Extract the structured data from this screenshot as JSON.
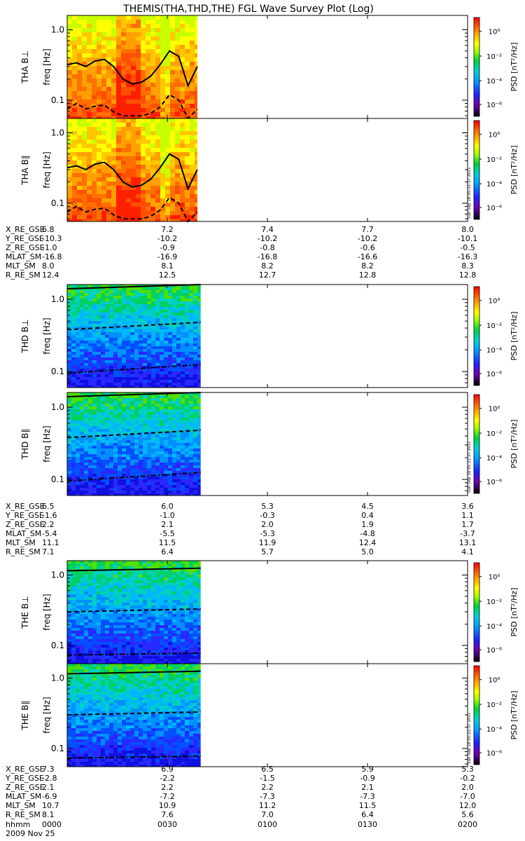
{
  "title": "THEMIS(THA,THD,THE) FGL Wave Survey Plot (Log)",
  "date_label": "2009 Nov 25",
  "time_row_label": "hhmm",
  "time_ticks": [
    "0000",
    "0030",
    "0100",
    "0130",
    "0200"
  ],
  "stamp_text": "Sun Sep 18 05:31:37 2011",
  "colors": {
    "line": "#000000"
  },
  "colorbar": {
    "label": "PSD [nT²/Hz]",
    "tick_labels": [
      "10⁰",
      "10⁻²",
      "10⁻⁴",
      "10⁻⁶"
    ]
  },
  "chart_data": {
    "type": "heatmap",
    "x_range": [
      "0000",
      "0200"
    ],
    "ylabel": "freq [Hz]",
    "yscale": "log",
    "ytick_labels": [
      "1.0",
      "0.1"
    ],
    "panels": [
      {
        "label": "THA B⊥",
        "probe": "THA",
        "data_end": "0039",
        "palette": "warm",
        "stamp": false,
        "ylim": [
          0.055,
          1.6
        ],
        "lines": [
          {
            "style": "solid",
            "values": [
              0.32,
              0.34,
              0.3,
              0.36,
              0.38,
              0.3,
              0.2,
              0.17,
              0.18,
              0.22,
              0.32,
              0.5,
              0.42,
              0.16,
              0.3
            ]
          },
          {
            "style": "dashed",
            "values": [
              0.075,
              0.09,
              0.075,
              0.082,
              0.085,
              0.068,
              0.06,
              0.06,
              0.06,
              0.065,
              0.08,
              0.12,
              0.1,
              0.055,
              0.075
            ]
          }
        ]
      },
      {
        "label": "THA B∥",
        "probe": "THA",
        "data_end": "0039",
        "palette": "warm",
        "stamp": true,
        "ylim": [
          0.055,
          1.6
        ],
        "lines": [
          {
            "style": "solid",
            "values": [
              0.32,
              0.34,
              0.3,
              0.36,
              0.38,
              0.3,
              0.2,
              0.17,
              0.18,
              0.22,
              0.32,
              0.5,
              0.42,
              0.16,
              0.3
            ]
          },
          {
            "style": "dashed",
            "values": [
              0.075,
              0.09,
              0.075,
              0.082,
              0.085,
              0.068,
              0.06,
              0.06,
              0.06,
              0.065,
              0.08,
              0.12,
              0.1,
              0.055,
              0.075
            ]
          }
        ]
      },
      {
        "label": "THD B⊥",
        "probe": "THD",
        "data_end": "0040",
        "palette": "cool",
        "stamp": false,
        "ylim": [
          0.06,
          1.6
        ],
        "lines": [
          {
            "style": "solid",
            "values": [
              1.4,
              1.6
            ]
          },
          {
            "style": "dashed",
            "values": [
              0.38,
              0.48
            ]
          },
          {
            "style": "dashdot",
            "values": [
              0.095,
              0.125
            ]
          }
        ]
      },
      {
        "label": "THD B∥",
        "probe": "THD",
        "data_end": "0040",
        "palette": "cool",
        "stamp": true,
        "ylim": [
          0.06,
          1.6
        ],
        "lines": [
          {
            "style": "solid",
            "values": [
              1.4,
              1.6
            ]
          },
          {
            "style": "dashed",
            "values": [
              0.38,
              0.48
            ]
          },
          {
            "style": "dashdot",
            "values": [
              0.095,
              0.125
            ]
          }
        ]
      },
      {
        "label": "THE B⊥",
        "probe": "THE",
        "data_end": "0040",
        "palette": "cool",
        "stamp": false,
        "ylim": [
          0.055,
          1.6
        ],
        "lines": [
          {
            "style": "solid",
            "values": [
              1.15,
              1.25
            ]
          },
          {
            "style": "dashed",
            "values": [
              0.3,
              0.33
            ]
          },
          {
            "style": "dashdot",
            "values": [
              0.073,
              0.078
            ]
          }
        ]
      },
      {
        "label": "THE B∥",
        "probe": "THE",
        "data_end": "0040",
        "palette": "cool",
        "stamp": true,
        "ylim": [
          0.055,
          1.6
        ],
        "lines": [
          {
            "style": "solid",
            "values": [
              1.15,
              1.25
            ]
          },
          {
            "style": "dashed",
            "values": [
              0.3,
              0.33
            ]
          },
          {
            "style": "dashdot",
            "values": [
              0.073,
              0.078
            ]
          }
        ]
      }
    ],
    "ephemeris_blocks": [
      {
        "probe": "THA",
        "rows": [
          {
            "name": "X_RE_GSE",
            "values": [
              "6.8",
              "7.2",
              "7.4",
              "7.7",
              "8.0"
            ]
          },
          {
            "name": "Y_RE_GSE",
            "values": [
              "-10.3",
              "-10.2",
              "-10.2",
              "-10.2",
              "-10.1"
            ]
          },
          {
            "name": "Z_RE_GSE",
            "values": [
              "-1.0",
              "-0.9",
              "-0.8",
              "-0.6",
              "-0.5"
            ]
          },
          {
            "name": "MLAT_SM",
            "values": [
              "-16.8",
              "-16.9",
              "-16.8",
              "-16.6",
              "-16.3"
            ]
          },
          {
            "name": "MLT_SM",
            "values": [
              "8.0",
              "8.1",
              "8.2",
              "8.2",
              "8.3"
            ]
          },
          {
            "name": "R_RE_SM",
            "values": [
              "12.4",
              "12.5",
              "12.7",
              "12.8",
              "12.8"
            ]
          }
        ]
      },
      {
        "probe": "THD",
        "rows": [
          {
            "name": "X_RE_GSE",
            "values": [
              "6.5",
              "6.0",
              "5.3",
              "4.5",
              "3.6"
            ]
          },
          {
            "name": "Y_RE_GSE",
            "values": [
              "-1.6",
              "-1.0",
              "-0.3",
              "0.4",
              "1.1"
            ]
          },
          {
            "name": "Z_RE_GSE",
            "values": [
              "2.2",
              "2.1",
              "2.0",
              "1.9",
              "1.7"
            ]
          },
          {
            "name": "MLAT_SM",
            "values": [
              "-5.4",
              "-5.5",
              "-5.3",
              "-4.8",
              "-3.7"
            ]
          },
          {
            "name": "MLT_SM",
            "values": [
              "11.1",
              "11.5",
              "11.9",
              "12.4",
              "13.1"
            ]
          },
          {
            "name": "R_RE_SM",
            "values": [
              "7.1",
              "6.4",
              "5.7",
              "5.0",
              "4.1"
            ]
          }
        ]
      },
      {
        "probe": "THE",
        "rows": [
          {
            "name": "X_RE_GSE",
            "values": [
              "7.3",
              "6.9",
              "6.5",
              "5.9",
              "5.3"
            ]
          },
          {
            "name": "Y_RE_GSE",
            "values": [
              "-2.8",
              "-2.2",
              "-1.5",
              "-0.9",
              "-0.2"
            ]
          },
          {
            "name": "Z_RE_GSE",
            "values": [
              "2.1",
              "2.2",
              "2.2",
              "2.1",
              "2.0"
            ]
          },
          {
            "name": "MLAT_SM",
            "values": [
              "-6.9",
              "-7.2",
              "-7.3",
              "-7.3",
              "-7.0"
            ]
          },
          {
            "name": "MLT_SM",
            "values": [
              "10.7",
              "10.9",
              "11.2",
              "11.5",
              "12.0"
            ]
          },
          {
            "name": "R_RE_SM",
            "values": [
              "8.1",
              "7.6",
              "7.0",
              "6.4",
              "5.6"
            ]
          }
        ]
      }
    ]
  }
}
